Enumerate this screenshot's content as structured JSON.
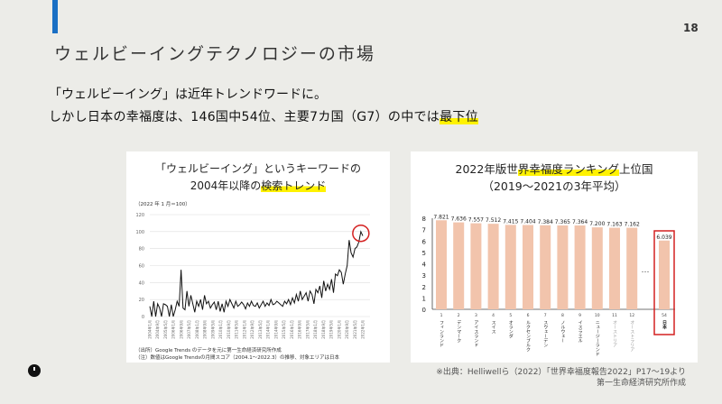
{
  "page_number": "18",
  "title": "ウェルビーイングテクノロジーの市場",
  "body": {
    "line1": "「ウェルビーイング」は近年トレンドワードに。",
    "line2_prefix": "しかし日本の幸福度は、146国中54位、主要7カ国（G7）の中では",
    "line2_highlight": "最下位"
  },
  "left_chart_title": {
    "line1": "「ウェルビーイング」というキーワードの",
    "line2_prefix": "2004年以降の",
    "line2_highlight": "検索トレンド"
  },
  "right_chart_title": {
    "line1_prefix": "2022年版世",
    "line1_highlight": "界幸福度ランキング",
    "line1_suffix": "上位国",
    "line2": "（2019～2021の3年平均）"
  },
  "left_notes": {
    "unit": "（2022 年 1 月＝100）",
    "source": "（出所）Google Trends のデータを元に第一生命経済研究所作成",
    "note": "（注）数値はGoogle Trendsの月間スコア（2004.1～2022.3）の推移、対象エリアは日本"
  },
  "source_note": {
    "line1": "※出典：Helliwellら（2022）「世界幸福度報告2022」P17～19より",
    "line2": "第一生命経済研究所作成"
  },
  "chart_data": [
    {
      "type": "line",
      "title": "「ウェルビーイング」というキーワードの2004年以降の検索トレンド",
      "ylabel": "（2022 年 1 月＝100）",
      "ylim": [
        0,
        120
      ],
      "yticks": [
        0,
        20,
        40,
        60,
        80,
        100,
        120
      ],
      "x_tick_labels": [
        "2004年1月",
        "2004年9月",
        "2005年5月",
        "2006年1月",
        "2006年9月",
        "2007年5月",
        "2008年1月",
        "2008年9月",
        "2009年5月",
        "2010年1月",
        "2010年9月",
        "2011年5月",
        "2012年1月",
        "2012年9月",
        "2013年5月",
        "2014年1月",
        "2014年9月",
        "2015年5月",
        "2016年1月",
        "2016年9月",
        "2017年5月",
        "2018年1月",
        "2018年9月",
        "2019年5月",
        "2020年1月",
        "2020年9月",
        "2021年5月",
        "2022年1月"
      ],
      "x_range": [
        "2004.1",
        "2022.3"
      ],
      "sampling": "bimonthly",
      "values": [
        12,
        0,
        18,
        0,
        15,
        10,
        0,
        15,
        14,
        12,
        0,
        14,
        0,
        8,
        18,
        12,
        55,
        10,
        8,
        30,
        12,
        25,
        15,
        5,
        18,
        12,
        20,
        8,
        25,
        15,
        18,
        10,
        14,
        17,
        8,
        18,
        6,
        15,
        5,
        18,
        12,
        20,
        15,
        10,
        18,
        12,
        14,
        17,
        14,
        9,
        16,
        12,
        18,
        13,
        12,
        16,
        10,
        14,
        18,
        12,
        16,
        13,
        20,
        14,
        15,
        18,
        16,
        14,
        12,
        18,
        15,
        20,
        14,
        22,
        16,
        26,
        18,
        30,
        20,
        24,
        28,
        18,
        30,
        26,
        15,
        32,
        28,
        36,
        22,
        42,
        30,
        38,
        32,
        44,
        28,
        50,
        48,
        55,
        52,
        38,
        50,
        60,
        90,
        75,
        70,
        80,
        82,
        88,
        100,
        95
      ],
      "annotation": "red circle at latest peak (100)",
      "grid": true
    },
    {
      "type": "bar",
      "title": "2022年版世界幸福度ランキング上位国（2019～2021の3年平均）",
      "ylim": [
        0,
        8
      ],
      "yticks": [
        0,
        1,
        2,
        3,
        4,
        5,
        6,
        7,
        8
      ],
      "ranks": [
        "1",
        "2",
        "3",
        "4",
        "5",
        "6",
        "7",
        "8",
        "9",
        "10",
        "11",
        "12",
        "54"
      ],
      "categories": [
        "フィンランド",
        "デンマーク",
        "アイスランド",
        "スイス",
        "オランダ",
        "ルクセンブルク",
        "スウェーデン",
        "ノルウェー",
        "イスラエル",
        "ニュージーランド",
        "オーストリア",
        "オーストラリア",
        "日本"
      ],
      "values": [
        7.821,
        7.636,
        7.557,
        7.512,
        7.415,
        7.404,
        7.384,
        7.365,
        7.364,
        7.2,
        7.163,
        7.162,
        6.039
      ],
      "value_labels": [
        "7.821",
        "7.636",
        "7.557",
        "7.512",
        "7.415",
        "7.404",
        "7.384",
        "7.365",
        "7.364",
        "7.200",
        "7.163",
        "7.162",
        "6.039"
      ],
      "ellipsis": "…",
      "highlight": "日本",
      "bar_color": "#f2c4ac",
      "highlight_color": "#d42020"
    }
  ]
}
